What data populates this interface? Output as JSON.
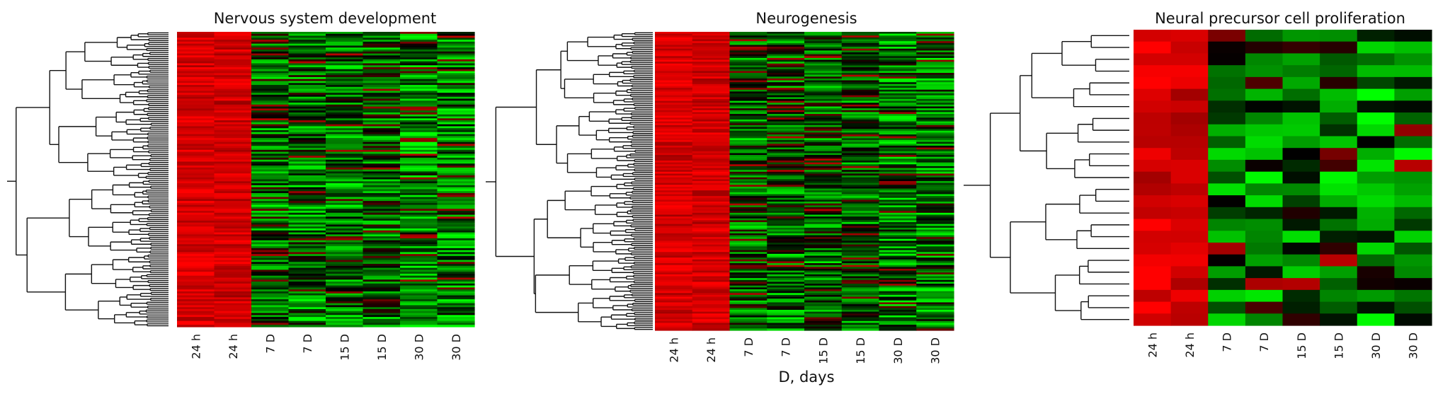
{
  "figure": {
    "x_axis_label": "D, days"
  },
  "chart_data": [
    {
      "type": "heatmap",
      "title": "Nervous system development",
      "columns": [
        "24 h",
        "24 h",
        "7 D",
        "7 D",
        "15 D",
        "15 D",
        "30 D",
        "30 D"
      ],
      "row_count": 150,
      "dendrogram": "rows",
      "colormap": {
        "high": "#ff0000",
        "mid": "#000000",
        "low": "#00ff00"
      },
      "column_pattern": [
        0.85,
        0.82,
        -0.35,
        -0.4,
        -0.38,
        -0.3,
        -0.55,
        -0.5
      ]
    },
    {
      "type": "heatmap",
      "title": "Neurogenesis",
      "columns": [
        "24 h",
        "24 h",
        "7 D",
        "7 D",
        "15 D",
        "15 D",
        "30 D",
        "30 D"
      ],
      "row_count": 160,
      "dendrogram": "rows",
      "colormap": {
        "high": "#ff0000",
        "mid": "#000000",
        "low": "#00ff00"
      },
      "column_pattern": [
        0.85,
        0.82,
        -0.3,
        -0.35,
        -0.3,
        -0.3,
        -0.5,
        -0.45
      ]
    },
    {
      "type": "heatmap",
      "title": "Neural precursor cell proliferation",
      "columns": [
        "24 h",
        "24 h",
        "7 D",
        "7 D",
        "15 D",
        "15 D",
        "30 D",
        "30 D"
      ],
      "row_count": 25,
      "dendrogram": "rows",
      "colormap": {
        "high": "#ff0000",
        "mid": "#000000",
        "low": "#00ff00"
      },
      "column_pattern": [
        0.85,
        0.8,
        -0.35,
        -0.4,
        -0.35,
        -0.3,
        -0.5,
        -0.5
      ]
    }
  ]
}
